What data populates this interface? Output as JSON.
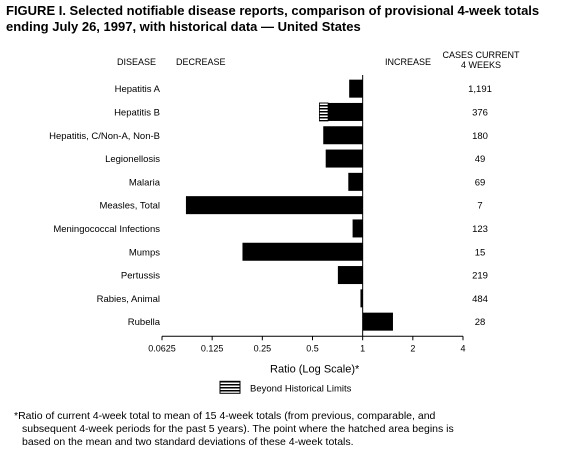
{
  "title": {
    "line1": "FIGURE I. Selected notifiable disease reports, comparison of provisional 4-week totals",
    "line2": "ending July 26, 1997, with historical data — United States"
  },
  "headers": {
    "disease": "DISEASE",
    "decrease": "DECREASE",
    "increase": "INCREASE",
    "cases_line1": "CASES CURRENT",
    "cases_line2": "4 WEEKS"
  },
  "chart_data": {
    "type": "bar",
    "orientation": "horizontal",
    "scale": "log2",
    "xlim": [
      0.0625,
      4
    ],
    "baseline": 1,
    "categories": [
      "Hepatitis A",
      "Hepatitis B",
      "Hepatitis, C/Non-A, Non-B",
      "Legionellosis",
      "Malaria",
      "Measles, Total",
      "Meningococcal Infections",
      "Mumps",
      "Pertussis",
      "Rabies, Animal",
      "Rubella"
    ],
    "values": [
      0.83,
      0.55,
      0.58,
      0.6,
      0.82,
      0.087,
      0.87,
      0.19,
      0.71,
      0.97,
      1.52
    ],
    "beyond_historical_limits_from": [
      null,
      0.62,
      null,
      null,
      null,
      null,
      null,
      null,
      null,
      null,
      null
    ],
    "cases": [
      "1,191",
      "376",
      "180",
      "49",
      "69",
      "7",
      "123",
      "15",
      "219",
      "484",
      "28"
    ],
    "ticks": [
      "0.0625",
      "0.125",
      "0.25",
      "0.5",
      "1",
      "2",
      "4"
    ],
    "tick_values": [
      0.0625,
      0.125,
      0.25,
      0.5,
      1,
      2,
      4
    ],
    "xlabel": "Ratio (Log Scale)*",
    "legend": "Beyond Historical Limits",
    "colors": {
      "bar": "#000000",
      "hatch": "#ffffff",
      "axis": "#000000"
    }
  },
  "footnote": {
    "line1": "*Ratio of current 4-week total to mean of 15 4-week totals (from previous, comparable, and",
    "line2": "subsequent 4-week periods for the past 5 years). The point where the hatched area begins is",
    "line3": "based on the mean and two standard deviations of these 4-week totals."
  }
}
